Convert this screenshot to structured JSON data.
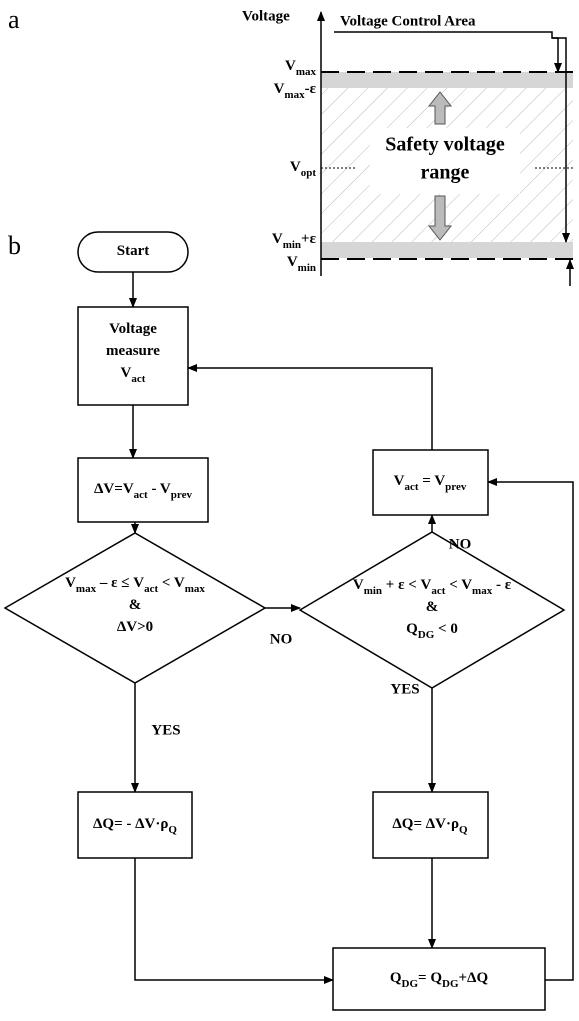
{
  "panel_a": {
    "label": "a",
    "axis_label": "Voltage",
    "title": "Voltage Control Area",
    "levels": {
      "vmax": [
        {
          "text": "V"
        },
        {
          "sub": "max"
        }
      ],
      "vmax_eps": [
        {
          "text": "V"
        },
        {
          "sub": "max"
        },
        {
          "text": "-ε"
        }
      ],
      "vopt": [
        {
          "text": "V"
        },
        {
          "sub": "opt"
        }
      ],
      "vmin_eps": [
        {
          "text": "V"
        },
        {
          "sub": "min"
        },
        {
          "text": "+ε"
        }
      ],
      "vmin": [
        {
          "text": "V"
        },
        {
          "sub": "min"
        }
      ]
    },
    "region": [
      "Safety voltage",
      "range"
    ]
  },
  "panel_b": {
    "label": "b",
    "nodes": {
      "start": [
        [
          {
            "text": "Start"
          }
        ]
      ],
      "measure": [
        [
          {
            "text": "Voltage"
          }
        ],
        [
          {
            "text": "measure"
          }
        ],
        [
          {
            "text": "V"
          },
          {
            "sub": "act"
          }
        ]
      ],
      "dv": [
        [
          {
            "text": "ΔV=V"
          },
          {
            "sub": "act"
          },
          {
            "text": " - V"
          },
          {
            "sub": "prev"
          }
        ]
      ],
      "cond1": [
        [
          {
            "text": "V"
          },
          {
            "sub": "max"
          },
          {
            "text": " – ε ≤ V"
          },
          {
            "sub": "act"
          },
          {
            "text": " < V"
          },
          {
            "sub": "max"
          }
        ],
        [
          {
            "text": "&"
          }
        ],
        [
          {
            "text": "ΔV>0"
          }
        ]
      ],
      "cond2": [
        [
          {
            "text": "V"
          },
          {
            "sub": "min"
          },
          {
            "text": " + ε < V"
          },
          {
            "sub": "act"
          },
          {
            "text": " < V"
          },
          {
            "sub": "max"
          },
          {
            "text": " - ε"
          }
        ],
        [
          {
            "text": "&"
          }
        ],
        [
          {
            "text": "Q"
          },
          {
            "sub": "DG"
          },
          {
            "text": " < 0"
          }
        ]
      ],
      "dq1": [
        [
          {
            "text": "ΔQ= - ΔV·ρ"
          },
          {
            "sub": "Q"
          }
        ]
      ],
      "dq2": [
        [
          {
            "text": "ΔQ= ΔV·ρ"
          },
          {
            "sub": "Q"
          }
        ]
      ],
      "update": [
        [
          {
            "text": "Q"
          },
          {
            "sub": "DG"
          },
          {
            "text": "= Q"
          },
          {
            "sub": "DG"
          },
          {
            "text": "+ΔQ"
          }
        ]
      ],
      "vset": [
        [
          {
            "text": "V"
          },
          {
            "sub": "act"
          },
          {
            "text": " = V"
          },
          {
            "sub": "prev"
          }
        ]
      ]
    },
    "edge_labels": {
      "no1": "NO",
      "no2": "NO",
      "yes1": "YES",
      "yes2": "YES"
    }
  }
}
